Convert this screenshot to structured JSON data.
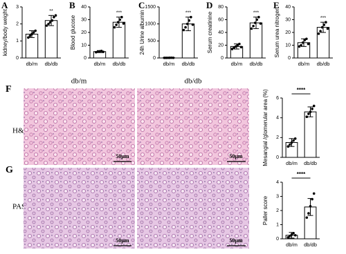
{
  "chart_data": [
    {
      "type": "bar",
      "panel_label": "A",
      "ylabel": "kidney/body weight",
      "categories": [
        "db/m",
        "db/db"
      ],
      "values": [
        1.4,
        2.2
      ],
      "errors": [
        0.2,
        0.3
      ],
      "points": [
        [
          1.2,
          1.3,
          1.4,
          1.5,
          1.6
        ],
        [
          1.9,
          2.0,
          2.1,
          2.2,
          2.4,
          2.5
        ]
      ],
      "significance": "**",
      "ylim": [
        0,
        3
      ],
      "yticks": [
        0,
        1,
        2,
        3
      ],
      "color": "#ffffff"
    },
    {
      "type": "bar",
      "panel_label": "B",
      "ylabel": "Blood glucose",
      "categories": [
        "db/m",
        "db/db"
      ],
      "values": [
        5,
        28
      ],
      "errors": [
        0.8,
        4
      ],
      "points": [
        [
          4.5,
          5,
          5.2,
          5.5,
          4.8
        ],
        [
          24,
          26,
          28,
          30,
          32,
          27
        ]
      ],
      "significance": "***",
      "ylim": [
        0,
        40
      ],
      "yticks": [
        0,
        10,
        20,
        30,
        40
      ],
      "color": "#ffffff"
    },
    {
      "type": "bar",
      "panel_label": "C",
      "ylabel": "24h Urine albumin",
      "categories": [
        "db/m",
        "db/db"
      ],
      "values": [
        5,
        1000
      ],
      "errors": [
        2,
        200
      ],
      "points": [
        [
          3,
          4,
          5,
          6,
          7,
          5
        ],
        [
          820,
          900,
          1000,
          1100,
          1200,
          980
        ]
      ],
      "significance": "***",
      "ylim": [
        0,
        1500
      ],
      "yticks": [
        0,
        500,
        1000,
        1500
      ],
      "color": "#ffffff"
    },
    {
      "type": "bar",
      "panel_label": "D",
      "ylabel": "Serum creatinine",
      "categories": [
        "db/m",
        "db/db"
      ],
      "values": [
        18,
        55
      ],
      "errors": [
        4,
        9
      ],
      "points": [
        [
          14,
          16,
          18,
          20,
          22,
          17
        ],
        [
          46,
          50,
          55,
          60,
          64,
          54
        ]
      ],
      "significance": "***",
      "ylim": [
        0,
        80
      ],
      "yticks": [
        0,
        20,
        40,
        60,
        80
      ],
      "color": "#ffffff"
    },
    {
      "type": "bar",
      "panel_label": "E",
      "ylabel": "Serum urea nitrogen",
      "categories": [
        "db/m",
        "db/db"
      ],
      "values": [
        12,
        24
      ],
      "errors": [
        3,
        4
      ],
      "points": [
        [
          9,
          10,
          12,
          14,
          15,
          11
        ],
        [
          19,
          21,
          24,
          26,
          28,
          23
        ]
      ],
      "significance": "***",
      "ylim": [
        0,
        40
      ],
      "yticks": [
        0,
        10,
        20,
        30,
        40
      ],
      "color": "#ffffff"
    },
    {
      "type": "bar",
      "ylabel": "Mesangial /glomerular area (%)",
      "categories": [
        "db/m",
        "db/db"
      ],
      "values": [
        1.5,
        4.6
      ],
      "errors": [
        0.4,
        0.5
      ],
      "points": [
        [
          1.1,
          1.3,
          1.5,
          1.7,
          1.9
        ],
        [
          4.1,
          4.4,
          4.6,
          4.9,
          5.2
        ]
      ],
      "significance": "****",
      "significance_bracket": true,
      "ylim": [
        0,
        6
      ],
      "yticks": [
        0,
        2,
        4,
        6
      ],
      "color": "#ffffff"
    },
    {
      "type": "bar",
      "ylabel": "Paller score",
      "categories": [
        "db/m",
        "db/db"
      ],
      "values": [
        0.25,
        2.25
      ],
      "errors": [
        0.2,
        0.6
      ],
      "points": [
        [
          0.1,
          0.2,
          0.3,
          0.4,
          0.25
        ],
        [
          1.5,
          1.8,
          2.3,
          2.8,
          3.2
        ]
      ],
      "significance": "****",
      "significance_bracket": true,
      "ylim": [
        0,
        4
      ],
      "yticks": [
        0,
        1,
        2,
        3,
        4
      ],
      "color": "#ffffff"
    }
  ],
  "figure": {
    "panel_labels": [
      "F",
      "G"
    ],
    "column_headers": [
      "db/m",
      "db/db"
    ],
    "row_labels": [
      "H&E",
      "PAS"
    ],
    "scale_bars": [
      "50μm",
      "50μm",
      "50μm",
      "50μm"
    ]
  }
}
